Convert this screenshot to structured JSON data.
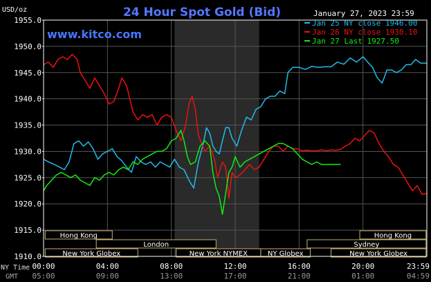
{
  "chart_data": {
    "type": "line",
    "title": "24 Hour Spot Gold (Bid)",
    "watermark": "www.kitco.com",
    "date_label": "January 27, 2023 23:59",
    "y_unit_label": "USD/oz",
    "ylim": [
      1910,
      1955
    ],
    "y_ticks": [
      "1955.0",
      "1950.0",
      "1945.0",
      "1940.0",
      "1935.0",
      "1930.0",
      "1925.0",
      "1920.0",
      "1915.0",
      "1910.0"
    ],
    "y_tick_values": [
      1955,
      1950,
      1945,
      1940,
      1935,
      1930,
      1925,
      1920,
      1915,
      1910
    ],
    "x_range_hours": [
      0,
      24
    ],
    "ny_time_label": "NY Time",
    "gmt_label": "GMT",
    "ny_ticks": [
      "00:00",
      "04:00",
      "08:00",
      "12:00",
      "16:00",
      "20:00",
      "23:59"
    ],
    "gmt_ticks": [
      "05:00",
      "09:00",
      "13:00",
      "17:00",
      "21:00",
      "01:00",
      "04:59"
    ],
    "tick_hours": [
      0,
      4,
      8,
      12,
      16,
      20,
      24
    ],
    "nymex_session_hours": [
      8.2,
      13.5
    ],
    "grid": true,
    "legend_position": "top-right",
    "series": [
      {
        "name": "Jan 25 NY close 1946.00",
        "color": "#22bbee",
        "points": [
          [
            0,
            1928.5
          ],
          [
            0.3,
            1928.0
          ],
          [
            0.6,
            1927.6
          ],
          [
            1.0,
            1927.0
          ],
          [
            1.3,
            1926.5
          ],
          [
            1.6,
            1928.0
          ],
          [
            1.9,
            1931.5
          ],
          [
            2.2,
            1932.0
          ],
          [
            2.5,
            1931.0
          ],
          [
            2.8,
            1931.8
          ],
          [
            3.1,
            1930.5
          ],
          [
            3.4,
            1928.5
          ],
          [
            3.7,
            1929.5
          ],
          [
            4.0,
            1930.0
          ],
          [
            4.3,
            1930.5
          ],
          [
            4.6,
            1929.0
          ],
          [
            4.9,
            1928.2
          ],
          [
            5.2,
            1927.0
          ],
          [
            5.5,
            1926.0
          ],
          [
            5.8,
            1929.0
          ],
          [
            6.1,
            1928.0
          ],
          [
            6.4,
            1927.5
          ],
          [
            6.7,
            1928.0
          ],
          [
            7.0,
            1927.0
          ],
          [
            7.3,
            1928.0
          ],
          [
            7.6,
            1927.5
          ],
          [
            7.9,
            1927.0
          ],
          [
            8.2,
            1928.5
          ],
          [
            8.5,
            1927.0
          ],
          [
            8.8,
            1926.5
          ],
          [
            9.1,
            1924.5
          ],
          [
            9.4,
            1923.0
          ],
          [
            9.7,
            1928.0
          ],
          [
            10.0,
            1931.5
          ],
          [
            10.2,
            1934.5
          ],
          [
            10.4,
            1933.5
          ],
          [
            10.6,
            1931.0
          ],
          [
            10.8,
            1930.0
          ],
          [
            11.0,
            1929.5
          ],
          [
            11.2,
            1932.0
          ],
          [
            11.4,
            1934.5
          ],
          [
            11.6,
            1934.5
          ],
          [
            11.8,
            1932.5
          ],
          [
            12.1,
            1931.0
          ],
          [
            12.4,
            1934.0
          ],
          [
            12.7,
            1936.5
          ],
          [
            13.0,
            1936.0
          ],
          [
            13.3,
            1938.0
          ],
          [
            13.6,
            1938.5
          ],
          [
            13.9,
            1940.0
          ],
          [
            14.2,
            1940.5
          ],
          [
            14.5,
            1940.5
          ],
          [
            14.8,
            1941.5
          ],
          [
            15.1,
            1941.0
          ],
          [
            15.3,
            1945.0
          ],
          [
            15.6,
            1946.0
          ],
          [
            16.0,
            1946.0
          ],
          [
            16.4,
            1945.6
          ],
          [
            16.8,
            1946.2
          ],
          [
            17.2,
            1946.0
          ],
          [
            17.6,
            1946.1
          ],
          [
            18.0,
            1946.1
          ],
          [
            18.4,
            1947.0
          ],
          [
            18.8,
            1946.6
          ],
          [
            19.2,
            1947.8
          ],
          [
            19.6,
            1947.0
          ],
          [
            20.0,
            1948.0
          ],
          [
            20.3,
            1947.0
          ],
          [
            20.6,
            1946.0
          ],
          [
            20.9,
            1944.0
          ],
          [
            21.2,
            1943.0
          ],
          [
            21.5,
            1945.5
          ],
          [
            21.8,
            1945.5
          ],
          [
            22.1,
            1945.0
          ],
          [
            22.4,
            1945.5
          ],
          [
            22.7,
            1946.5
          ],
          [
            23.0,
            1946.5
          ],
          [
            23.3,
            1947.5
          ],
          [
            23.6,
            1946.8
          ],
          [
            23.99,
            1946.8
          ]
        ]
      },
      {
        "name": "Jan 26 NY close 1930.10",
        "color": "#ee1111",
        "points": [
          [
            0,
            1946.5
          ],
          [
            0.3,
            1947.0
          ],
          [
            0.6,
            1946.0
          ],
          [
            0.9,
            1947.5
          ],
          [
            1.2,
            1948.0
          ],
          [
            1.5,
            1947.5
          ],
          [
            1.8,
            1948.5
          ],
          [
            2.1,
            1947.5
          ],
          [
            2.3,
            1945.0
          ],
          [
            2.6,
            1943.5
          ],
          [
            2.9,
            1942.0
          ],
          [
            3.2,
            1944.0
          ],
          [
            3.5,
            1942.5
          ],
          [
            3.8,
            1941.0
          ],
          [
            4.1,
            1939.0
          ],
          [
            4.4,
            1939.5
          ],
          [
            4.7,
            1942.0
          ],
          [
            4.9,
            1944.0
          ],
          [
            5.2,
            1942.5
          ],
          [
            5.4,
            1940.0
          ],
          [
            5.6,
            1937.5
          ],
          [
            5.9,
            1936.0
          ],
          [
            6.2,
            1937.0
          ],
          [
            6.5,
            1936.5
          ],
          [
            6.8,
            1937.0
          ],
          [
            7.1,
            1935.0
          ],
          [
            7.4,
            1936.5
          ],
          [
            7.7,
            1937.0
          ],
          [
            8.0,
            1936.5
          ],
          [
            8.3,
            1934.0
          ],
          [
            8.6,
            1932.0
          ],
          [
            8.9,
            1935.0
          ],
          [
            9.1,
            1939.0
          ],
          [
            9.3,
            1940.5
          ],
          [
            9.5,
            1938.0
          ],
          [
            9.7,
            1933.0
          ],
          [
            9.9,
            1931.5
          ],
          [
            10.1,
            1930.0
          ],
          [
            10.4,
            1931.0
          ],
          [
            10.7,
            1928.5
          ],
          [
            10.9,
            1925.0
          ],
          [
            11.2,
            1928.0
          ],
          [
            11.4,
            1927.0
          ],
          [
            11.6,
            1921.0
          ],
          [
            11.8,
            1926.0
          ],
          [
            12.0,
            1925.0
          ],
          [
            12.3,
            1925.5
          ],
          [
            12.6,
            1926.5
          ],
          [
            12.9,
            1927.5
          ],
          [
            13.2,
            1926.5
          ],
          [
            13.5,
            1927.0
          ],
          [
            13.8,
            1928.5
          ],
          [
            14.1,
            1930.0
          ],
          [
            14.4,
            1931.0
          ],
          [
            14.7,
            1931.0
          ],
          [
            15.0,
            1930.0
          ],
          [
            15.3,
            1931.0
          ],
          [
            15.6,
            1930.5
          ],
          [
            15.9,
            1930.5
          ],
          [
            16.2,
            1930.1
          ],
          [
            16.5,
            1930.2
          ],
          [
            16.8,
            1930.1
          ],
          [
            17.1,
            1930.1
          ],
          [
            17.4,
            1930.3
          ],
          [
            17.7,
            1930.1
          ],
          [
            18.0,
            1930.3
          ],
          [
            18.3,
            1930.2
          ],
          [
            18.6,
            1930.4
          ],
          [
            18.9,
            1931.0
          ],
          [
            19.2,
            1931.5
          ],
          [
            19.5,
            1932.5
          ],
          [
            19.8,
            1932.0
          ],
          [
            20.1,
            1933.0
          ],
          [
            20.4,
            1934.0
          ],
          [
            20.7,
            1933.5
          ],
          [
            21.0,
            1931.5
          ],
          [
            21.3,
            1930.0
          ],
          [
            21.6,
            1929.0
          ],
          [
            21.9,
            1927.5
          ],
          [
            22.2,
            1927.0
          ],
          [
            22.5,
            1925.5
          ],
          [
            22.8,
            1924.0
          ],
          [
            23.1,
            1922.5
          ],
          [
            23.4,
            1923.5
          ],
          [
            23.7,
            1921.8
          ],
          [
            23.99,
            1922.0
          ]
        ]
      },
      {
        "name": "Jan 27 Last 1927.50",
        "color": "#11ee11",
        "points": [
          [
            0,
            1922.5
          ],
          [
            0.2,
            1923.5
          ],
          [
            0.5,
            1924.5
          ],
          [
            0.8,
            1925.5
          ],
          [
            1.1,
            1926.0
          ],
          [
            1.4,
            1925.5
          ],
          [
            1.7,
            1925.0
          ],
          [
            2.0,
            1925.5
          ],
          [
            2.3,
            1924.5
          ],
          [
            2.6,
            1924.0
          ],
          [
            2.9,
            1923.5
          ],
          [
            3.2,
            1925.0
          ],
          [
            3.5,
            1924.5
          ],
          [
            3.8,
            1925.5
          ],
          [
            4.1,
            1926.0
          ],
          [
            4.4,
            1925.5
          ],
          [
            4.7,
            1926.5
          ],
          [
            5.0,
            1927.0
          ],
          [
            5.3,
            1926.5
          ],
          [
            5.6,
            1928.0
          ],
          [
            5.9,
            1927.5
          ],
          [
            6.2,
            1928.5
          ],
          [
            6.5,
            1929.0
          ],
          [
            6.8,
            1929.5
          ],
          [
            7.1,
            1930.0
          ],
          [
            7.4,
            1930.0
          ],
          [
            7.7,
            1930.5
          ],
          [
            8.0,
            1932.0
          ],
          [
            8.3,
            1932.5
          ],
          [
            8.6,
            1934.0
          ],
          [
            8.8,
            1932.0
          ],
          [
            9.0,
            1929.0
          ],
          [
            9.2,
            1927.5
          ],
          [
            9.5,
            1928.0
          ],
          [
            9.8,
            1931.0
          ],
          [
            10.1,
            1932.0
          ],
          [
            10.4,
            1931.0
          ],
          [
            10.6,
            1926.0
          ],
          [
            10.8,
            1923.0
          ],
          [
            11.0,
            1921.5
          ],
          [
            11.2,
            1918.0
          ],
          [
            11.4,
            1922.0
          ],
          [
            11.6,
            1926.0
          ],
          [
            11.8,
            1927.0
          ],
          [
            12.0,
            1929.0
          ],
          [
            12.3,
            1927.0
          ],
          [
            12.6,
            1928.0
          ],
          [
            12.9,
            1928.5
          ],
          [
            13.2,
            1929.0
          ],
          [
            13.5,
            1929.5
          ],
          [
            13.8,
            1930.0
          ],
          [
            14.1,
            1930.5
          ],
          [
            14.4,
            1931.0
          ],
          [
            14.7,
            1931.5
          ],
          [
            15.0,
            1931.5
          ],
          [
            15.3,
            1931.0
          ],
          [
            15.6,
            1930.5
          ],
          [
            15.9,
            1929.5
          ],
          [
            16.2,
            1928.5
          ],
          [
            16.5,
            1928.0
          ],
          [
            16.8,
            1927.5
          ],
          [
            17.1,
            1928.0
          ],
          [
            17.4,
            1927.5
          ],
          [
            17.7,
            1927.5
          ],
          [
            18.0,
            1927.5
          ],
          [
            18.3,
            1927.5
          ],
          [
            18.6,
            1927.5
          ]
        ]
      }
    ],
    "sessions": [
      {
        "label": "Hong Kong",
        "start": 0.1,
        "end": 4.3,
        "row": 0
      },
      {
        "label": "Hong Kong",
        "start": 19.8,
        "end": 23.95,
        "row": 0
      },
      {
        "label": "London",
        "start": 3.3,
        "end": 10.8,
        "row": 1
      },
      {
        "label": "Sydney",
        "start": 16.5,
        "end": 23.95,
        "row": 1
      },
      {
        "label": "New York Globex",
        "start": 0.1,
        "end": 5.9,
        "row": 2
      },
      {
        "label": "New York NYMEX",
        "start": 8.3,
        "end": 13.6,
        "row": 2
      },
      {
        "label": "NY Globex",
        "start": 13.6,
        "end": 16.7,
        "row": 2
      },
      {
        "label": "New York Globex",
        "start": 18.0,
        "end": 23.95,
        "row": 2
      }
    ]
  }
}
